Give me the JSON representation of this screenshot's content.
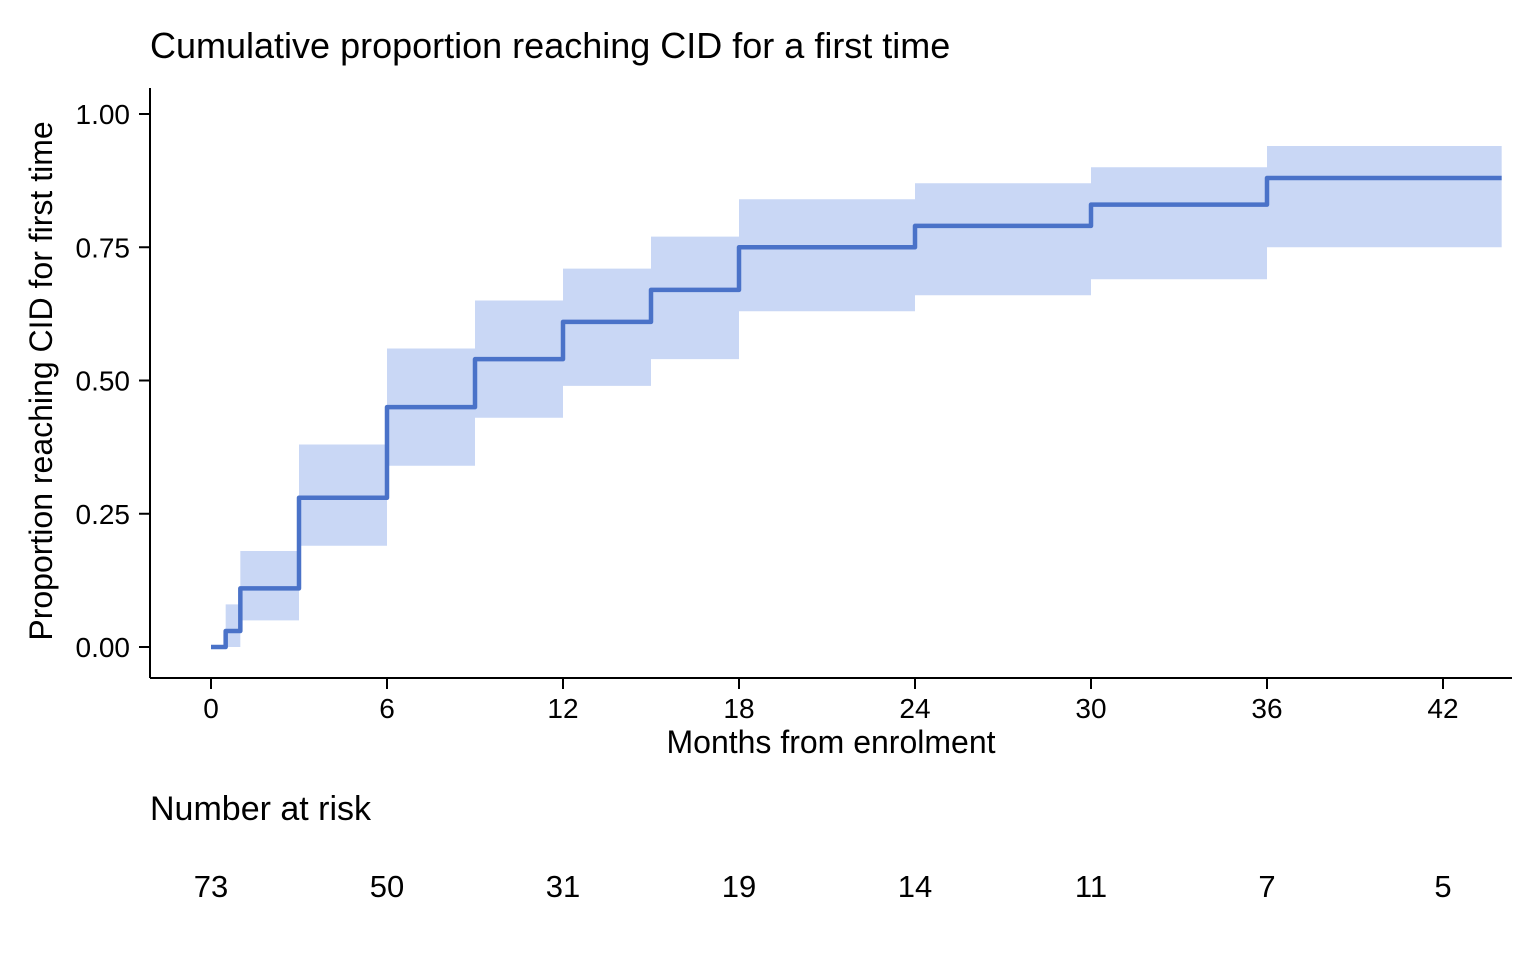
{
  "chart_data": {
    "type": "line",
    "subtype": "kaplan-meier-cumulative-incidence-step",
    "title": "Cumulative proportion reaching CID for a first time",
    "xlabel": "Months from enrolment",
    "ylabel": "Proportion reaching CID for first time",
    "xlim": [
      0,
      44
    ],
    "ylim": [
      0,
      1
    ],
    "x_ticks": [
      0,
      6,
      12,
      18,
      24,
      30,
      36,
      42
    ],
    "y_ticks": [
      "0.00",
      "0.25",
      "0.50",
      "0.75",
      "1.00"
    ],
    "grid": false,
    "legend": "none",
    "series": [
      {
        "name": "Cumulative proportion reaching CID (with confidence band)",
        "step_times": [
          0,
          0.5,
          1,
          3,
          6,
          9,
          12,
          15,
          18,
          24,
          30,
          36
        ],
        "estimate": [
          0,
          0.03,
          0.11,
          0.28,
          0.45,
          0.54,
          0.61,
          0.67,
          0.75,
          0.79,
          0.83,
          0.88
        ],
        "ci_lower": [
          0,
          0.0,
          0.05,
          0.19,
          0.34,
          0.43,
          0.49,
          0.54,
          0.63,
          0.66,
          0.69,
          0.75
        ],
        "ci_upper": [
          0,
          0.08,
          0.18,
          0.38,
          0.56,
          0.65,
          0.71,
          0.77,
          0.84,
          0.87,
          0.9,
          0.94
        ],
        "end_time": 44
      }
    ],
    "colors": {
      "line": "#4a72c8",
      "band": "#c9d7f5",
      "axis": "#000000",
      "text": "#000000"
    },
    "risk_table": {
      "label": "Number at risk",
      "times": [
        0,
        6,
        12,
        18,
        24,
        30,
        36,
        42
      ],
      "counts": [
        73,
        50,
        31,
        19,
        14,
        11,
        7,
        5
      ]
    }
  }
}
